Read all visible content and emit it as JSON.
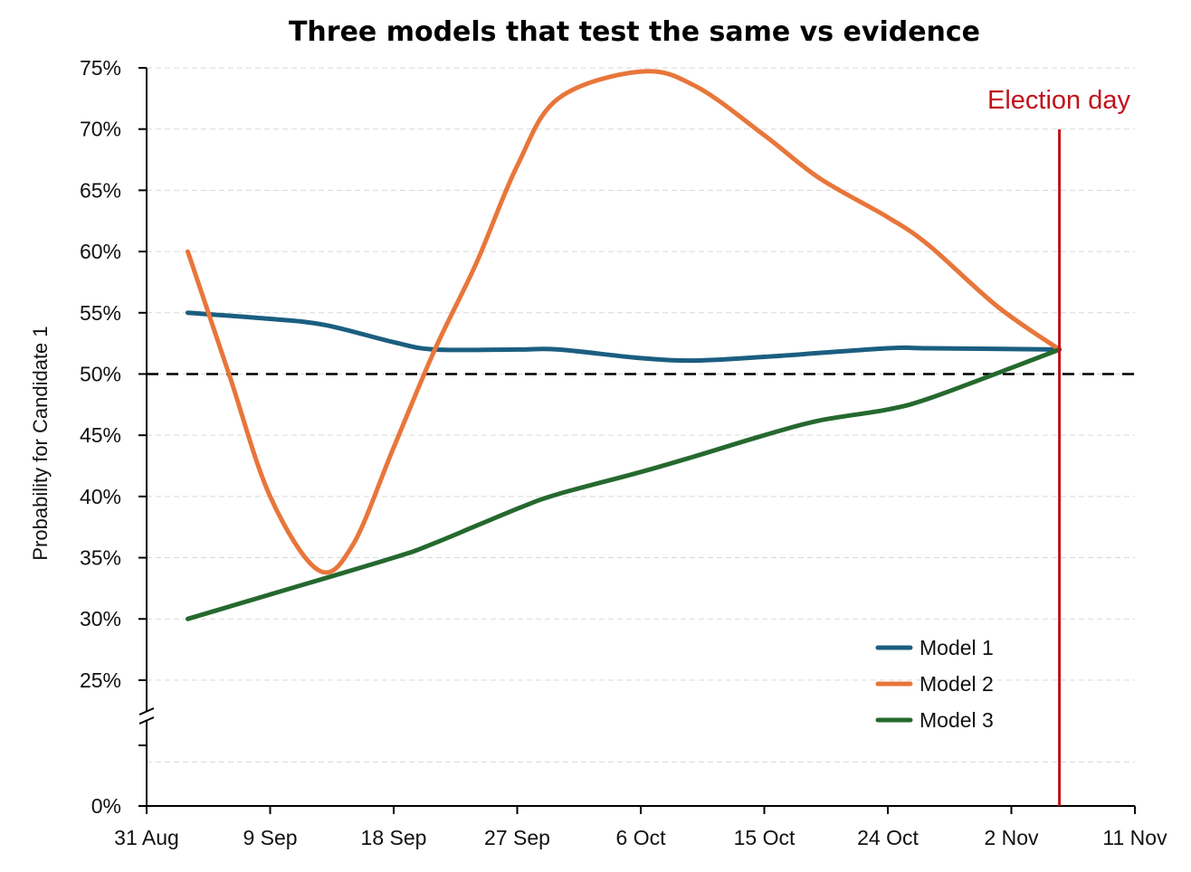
{
  "chart_data": {
    "type": "line",
    "title": "Three models that test the same vs evidence",
    "xlabel": "",
    "ylabel": "Probability for Candidate 1",
    "x_tick_labels": [
      "31 Aug",
      "9 Sep",
      "18 Sep",
      "27 Sep",
      "6 Oct",
      "15 Oct",
      "24 Oct",
      "2 Nov",
      "11 Nov"
    ],
    "x_ticks_day": [
      0,
      9,
      18,
      27,
      36,
      45,
      54,
      63,
      72
    ],
    "xlim_day": [
      0,
      72
    ],
    "y_tick_labels": [
      "0%",
      "25%",
      "30%",
      "35%",
      "40%",
      "45%",
      "50%",
      "55%",
      "60%",
      "65%",
      "70%",
      "75%"
    ],
    "y_ticks": [
      0,
      25,
      30,
      35,
      40,
      45,
      50,
      55,
      60,
      65,
      70,
      75
    ],
    "ylim": [
      0,
      75
    ],
    "y_axis_break": true,
    "grid": "horizontal dashed",
    "legend_position": "bottom-right",
    "reference_line": {
      "y": 50,
      "style": "dashed",
      "color": "#000000"
    },
    "event_line": {
      "label": "Election day",
      "x_day": 66.5,
      "color": "#c0121a"
    },
    "series": [
      {
        "name": "Model 1",
        "color": "#1b5e80",
        "points": [
          [
            3,
            55
          ],
          [
            9,
            54.5
          ],
          [
            13,
            54
          ],
          [
            18,
            52.6
          ],
          [
            21,
            52
          ],
          [
            27,
            52
          ],
          [
            30,
            52
          ],
          [
            36,
            51.3
          ],
          [
            40,
            51.1
          ],
          [
            45,
            51.4
          ],
          [
            54,
            52.1
          ],
          [
            57,
            52.1
          ],
          [
            66.5,
            52
          ]
        ]
      },
      {
        "name": "Model 2",
        "color": "#e8763a",
        "points": [
          [
            3,
            60
          ],
          [
            6,
            50
          ],
          [
            9,
            40
          ],
          [
            12.5,
            34
          ],
          [
            15,
            36
          ],
          [
            18,
            44
          ],
          [
            21,
            52
          ],
          [
            24,
            59
          ],
          [
            27,
            67
          ],
          [
            30,
            72.5
          ],
          [
            36,
            74.7
          ],
          [
            40,
            73.5
          ],
          [
            45,
            69.5
          ],
          [
            49,
            66
          ],
          [
            54,
            62.8
          ],
          [
            57,
            60.5
          ],
          [
            62,
            55.5
          ],
          [
            66.5,
            52
          ]
        ]
      },
      {
        "name": "Model 3",
        "color": "#25692e",
        "points": [
          [
            3,
            30
          ],
          [
            9,
            32
          ],
          [
            18,
            35
          ],
          [
            21,
            36.2
          ],
          [
            27,
            39
          ],
          [
            30,
            40.2
          ],
          [
            36,
            42
          ],
          [
            40,
            43.3
          ],
          [
            45,
            45
          ],
          [
            49,
            46.2
          ],
          [
            54,
            47.1
          ],
          [
            57,
            48
          ],
          [
            63,
            50.5
          ],
          [
            66.5,
            52
          ]
        ]
      }
    ]
  }
}
